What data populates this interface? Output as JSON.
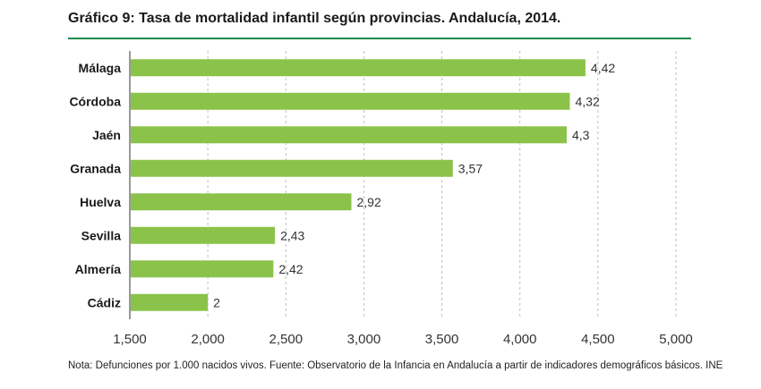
{
  "title": "Gráfico 9: Tasa de mortalidad infantil según provincias. Andalucía, 2014.",
  "note": "Nota: Defunciones por 1.000 nacidos vivos. Fuente: Observatorio de la Infancia en Andalucía a partir de indicadores demográficos básicos. INE",
  "colors": {
    "bar": "#8bc34a",
    "rule": "#1e8a4c",
    "grid": "#bfbfbf",
    "axis": "#333333"
  },
  "chart_data": {
    "type": "bar",
    "orientation": "horizontal",
    "title": "Gráfico 9: Tasa de mortalidad infantil según provincias. Andalucía, 2014.",
    "xlabel": "",
    "ylabel": "",
    "categories": [
      "Málaga",
      "Córdoba",
      "Jaén",
      "Granada",
      "Huelva",
      "Sevilla",
      "Almería",
      "Cádiz"
    ],
    "values": [
      4.42,
      4.32,
      4.3,
      3.57,
      2.92,
      2.43,
      2.42,
      2
    ],
    "value_labels": [
      "4,42",
      "4,32",
      "4,3",
      "3,57",
      "2,92",
      "2,43",
      "2,42",
      "2"
    ],
    "xlim": [
      1.5,
      5.0
    ],
    "xticks": [
      1.5,
      2.0,
      2.5,
      3.0,
      3.5,
      4.0,
      4.5,
      5.0
    ],
    "xtick_labels": [
      "1,500",
      "2,000",
      "2,500",
      "3,000",
      "3,500",
      "4,000",
      "4,500",
      "5,000"
    ],
    "grid": "vertical dashed",
    "legend": "none"
  }
}
